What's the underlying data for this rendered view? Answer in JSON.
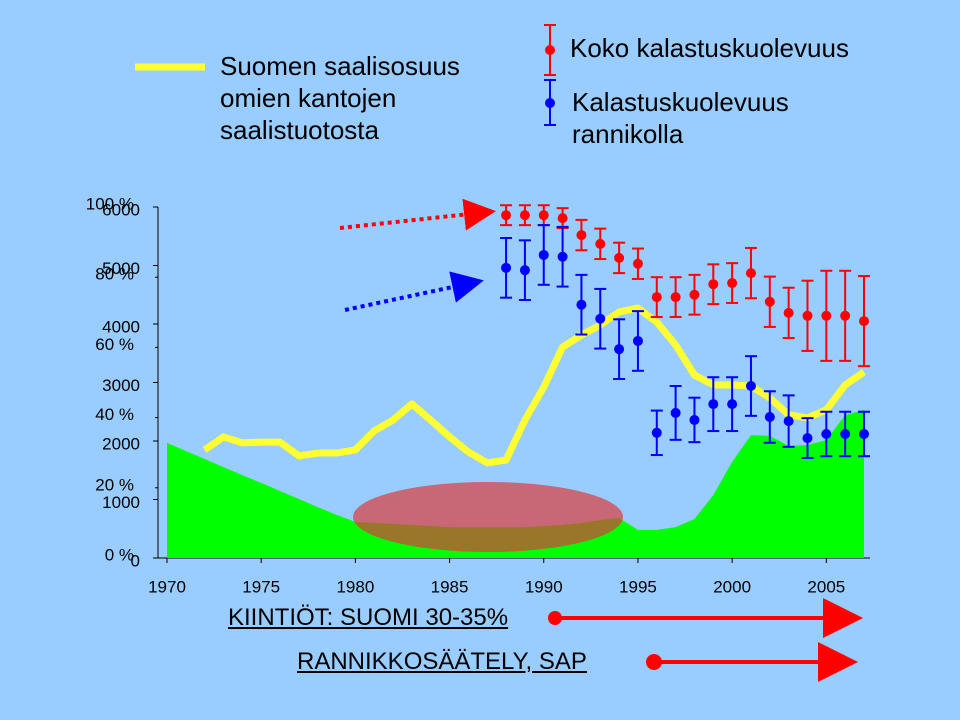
{
  "chart_data": {
    "type": "line",
    "x": [
      1970,
      1971,
      1972,
      1973,
      1974,
      1975,
      1976,
      1977,
      1978,
      1979,
      1980,
      1981,
      1982,
      1983,
      1984,
      1985,
      1986,
      1987,
      1988,
      1989,
      1990,
      1991,
      1992,
      1993,
      1994,
      1995,
      1996,
      1997,
      1998,
      1999,
      2000,
      2001,
      2002,
      2003,
      2004,
      2005,
      2006,
      2007
    ],
    "xlim": [
      1970,
      2007
    ],
    "xticks": [
      1970,
      1975,
      1980,
      1985,
      1990,
      1995,
      2000,
      2005
    ],
    "ylim": [
      0,
      6000
    ],
    "yticks": [
      0,
      1000,
      2000,
      3000,
      4000,
      5000,
      6000
    ],
    "y2lim": [
      0,
      100
    ],
    "y2ticks": [
      {
        "value": 0,
        "label": "0 %"
      },
      {
        "value": 20,
        "label": "20 %"
      },
      {
        "value": 40,
        "label": "40 %"
      },
      {
        "value": 60,
        "label": "60 %"
      },
      {
        "value": 80,
        "label": "80 %"
      },
      {
        "value": 100,
        "label": "100 %"
      }
    ],
    "series": [
      {
        "type": "area",
        "color": "#00ff00",
        "axis": "y2",
        "values": [
          32.8,
          30.5,
          28.2,
          25.9,
          23.6,
          21.4,
          19.1,
          16.8,
          14.5,
          12.3,
          10.3,
          10.0,
          9.7,
          9.4,
          9.1,
          8.8,
          8.8,
          8.8,
          8.8,
          8.8,
          9.1,
          9.4,
          10.0,
          10.8,
          11.4,
          8.0,
          8.0,
          8.8,
          11.1,
          17.9,
          27.4,
          35.0,
          34.8,
          31.9,
          32.2,
          33.6,
          40.7,
          42.2
        ]
      },
      {
        "name": "Suomen saalisosuus omien kantojen saalistuotosta",
        "type": "line",
        "color": "#ffff33",
        "axis": "y2",
        "values": [
          null,
          null,
          30.8,
          34.5,
          32.8,
          33.0,
          33.0,
          29.1,
          29.9,
          29.9,
          30.8,
          36.2,
          39.3,
          43.9,
          39.3,
          34.5,
          30.2,
          27.1,
          27.9,
          39.3,
          48.7,
          60.1,
          63.5,
          66.4,
          70.1,
          71.2,
          67.2,
          60.7,
          52.1,
          49.3,
          49.3,
          49.0,
          45.6,
          40.8,
          39.9,
          42.2,
          49.3,
          53.0
        ]
      },
      {
        "name": "Koko kalastuskuolevuus",
        "type": "errorbar",
        "color": "#ff0000",
        "values": [
          null,
          null,
          null,
          null,
          null,
          null,
          null,
          null,
          null,
          null,
          null,
          null,
          null,
          null,
          null,
          null,
          null,
          null,
          5860,
          5860,
          5860,
          5810,
          5520,
          5370,
          5130,
          5030,
          4460,
          4460,
          4500,
          4680,
          4700,
          4870,
          4380,
          4190,
          4140,
          4140,
          4140,
          4050
        ],
        "errors": [
          null,
          null,
          null,
          null,
          null,
          null,
          null,
          null,
          null,
          null,
          null,
          null,
          null,
          null,
          null,
          null,
          null,
          null,
          170,
          170,
          170,
          170,
          260,
          260,
          260,
          260,
          340,
          340,
          340,
          340,
          340,
          430,
          430,
          430,
          600,
          770,
          770,
          770
        ]
      },
      {
        "name": "Kalastuskuolevuus rannikolla",
        "type": "errorbar",
        "color": "#0000ff",
        "values": [
          null,
          null,
          null,
          null,
          null,
          null,
          null,
          null,
          null,
          null,
          null,
          null,
          null,
          null,
          null,
          null,
          null,
          null,
          4960,
          4920,
          5180,
          5150,
          4330,
          4090,
          3570,
          3710,
          2140,
          2480,
          2360,
          2630,
          2630,
          2940,
          2410,
          2340,
          2050,
          2120,
          2120,
          2120
        ],
        "errors": [
          null,
          null,
          null,
          null,
          null,
          null,
          null,
          null,
          null,
          null,
          null,
          null,
          null,
          null,
          null,
          null,
          null,
          null,
          510,
          510,
          510,
          510,
          510,
          510,
          510,
          510,
          380,
          460,
          380,
          460,
          460,
          510,
          440,
          440,
          340,
          380,
          380,
          380
        ]
      }
    ],
    "annotations": [
      "KIINTIÖT: SUOMI 30-35%",
      "RANNIKKOSÄÄTELY, SAP"
    ]
  }
}
